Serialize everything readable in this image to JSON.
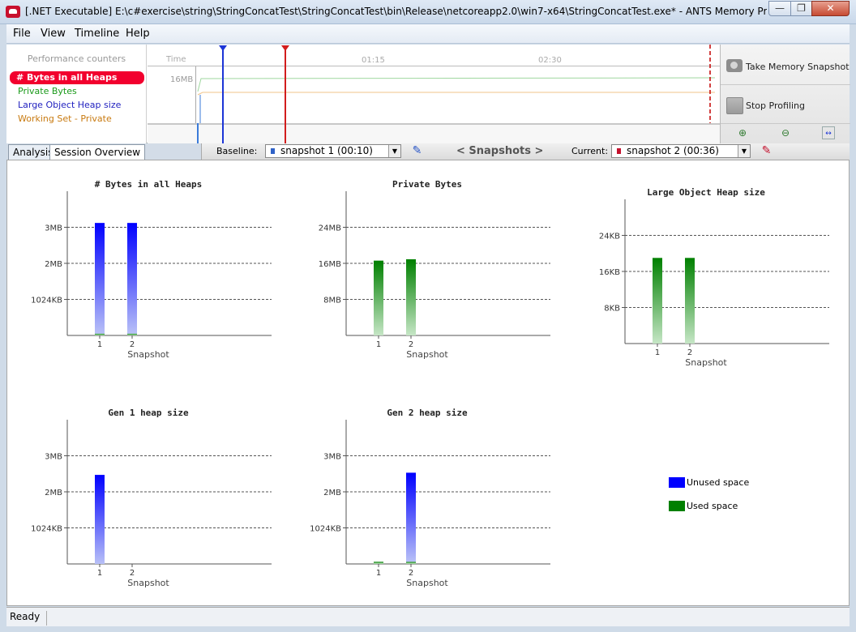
{
  "window": {
    "title": "[.NET Executable] E:\\c#exercise\\string\\StringConcatTest\\StringConcatTest\\bin\\Release\\netcoreapp2.0\\win7-x64\\StringConcatTest.exe* - ANTS Memory Profil...",
    "minimize_label": "—",
    "maximize_label": "❐",
    "close_label": "✕"
  },
  "menu": {
    "items": [
      {
        "label": "File"
      },
      {
        "label": "View"
      },
      {
        "label": "Timeline"
      },
      {
        "label": "Help"
      }
    ]
  },
  "counters": {
    "title": "Performance counters",
    "items": [
      {
        "label": "# Bytes in all Heaps",
        "color": "#ffffff"
      },
      {
        "label": "Private Bytes",
        "color": "#1a9a1a"
      },
      {
        "label": "Large Object Heap size",
        "color": "#1f1fbf"
      },
      {
        "label": "Working Set - Private",
        "color": "#c87a10"
      }
    ]
  },
  "timeline": {
    "time_label": "Time",
    "ticks": [
      "01:15",
      "02:30"
    ],
    "axis_label": "16MB"
  },
  "actions": {
    "take_snapshot": "Take Memory Snapshot",
    "stop_profiling": "Stop Profiling"
  },
  "tabs": [
    {
      "label": "Analysis"
    },
    {
      "label": "Session Overview",
      "selected": true
    }
  ],
  "snapshots_bar": {
    "baseline_label": "Baseline:",
    "baseline_value": "snapshot 1 (00:10)",
    "center_label": "< Snapshots >",
    "current_label": "Current:",
    "current_value": "snapshot 2 (00:36)"
  },
  "colors": {
    "unused": "#0000ff",
    "used": "#008000"
  },
  "chart_data": [
    {
      "type": "bar",
      "title": "# Bytes in all Heaps",
      "xlabel": "Snapshot",
      "categories": [
        "1",
        "2"
      ],
      "yticks": [
        "1024KB",
        "2MB",
        "3MB"
      ],
      "ytick_values": [
        1,
        2,
        3
      ],
      "ylim": [
        0,
        4
      ],
      "series": [
        {
          "name": "Used space",
          "values": [
            0.05,
            0.05
          ],
          "kind": "green"
        },
        {
          "name": "Unused space",
          "values": [
            3.07,
            3.07
          ],
          "kind": "blue"
        }
      ]
    },
    {
      "type": "bar",
      "title": "Private Bytes",
      "xlabel": "Snapshot",
      "categories": [
        "1",
        "2"
      ],
      "yticks": [
        "8MB",
        "16MB",
        "24MB"
      ],
      "ytick_values": [
        8,
        16,
        24
      ],
      "ylim": [
        0,
        32
      ],
      "series": [
        {
          "name": "Used space",
          "values": [
            16.6,
            16.9
          ],
          "kind": "green"
        },
        {
          "name": "Unused space",
          "values": [
            0,
            0
          ],
          "kind": "blue"
        }
      ]
    },
    {
      "type": "bar",
      "title": "Large Object Heap size",
      "xlabel": "Snapshot",
      "categories": [
        "1",
        "2"
      ],
      "yticks": [
        "8KB",
        "16KB",
        "24KB"
      ],
      "ytick_values": [
        8,
        16,
        24
      ],
      "ylim": [
        0,
        32
      ],
      "series": [
        {
          "name": "Used space",
          "values": [
            19,
            19
          ],
          "kind": "green"
        },
        {
          "name": "Unused space",
          "values": [
            0,
            0
          ],
          "kind": "blue"
        }
      ]
    },
    {
      "type": "bar",
      "title": "Gen 1 heap size",
      "xlabel": "Snapshot",
      "categories": [
        "1",
        "2"
      ],
      "yticks": [
        "1024KB",
        "2MB",
        "3MB"
      ],
      "ytick_values": [
        1,
        2,
        3
      ],
      "ylim": [
        0,
        4
      ],
      "series": [
        {
          "name": "Used space",
          "values": [
            0,
            0
          ],
          "kind": "green"
        },
        {
          "name": "Unused space",
          "values": [
            2.47,
            0
          ],
          "kind": "blue"
        }
      ]
    },
    {
      "type": "bar",
      "title": "Gen 2 heap size",
      "xlabel": "Snapshot",
      "categories": [
        "1",
        "2"
      ],
      "yticks": [
        "1024KB",
        "2MB",
        "3MB"
      ],
      "ytick_values": [
        1,
        2,
        3
      ],
      "ylim": [
        0,
        4
      ],
      "series": [
        {
          "name": "Used space",
          "values": [
            0.06,
            0.06
          ],
          "kind": "green"
        },
        {
          "name": "Unused space",
          "values": [
            0,
            2.47
          ],
          "kind": "blue"
        }
      ]
    }
  ],
  "legend": [
    {
      "label": "Unused space",
      "color": "#0000ff"
    },
    {
      "label": "Used space",
      "color": "#008000"
    }
  ],
  "status": {
    "text": "Ready"
  }
}
